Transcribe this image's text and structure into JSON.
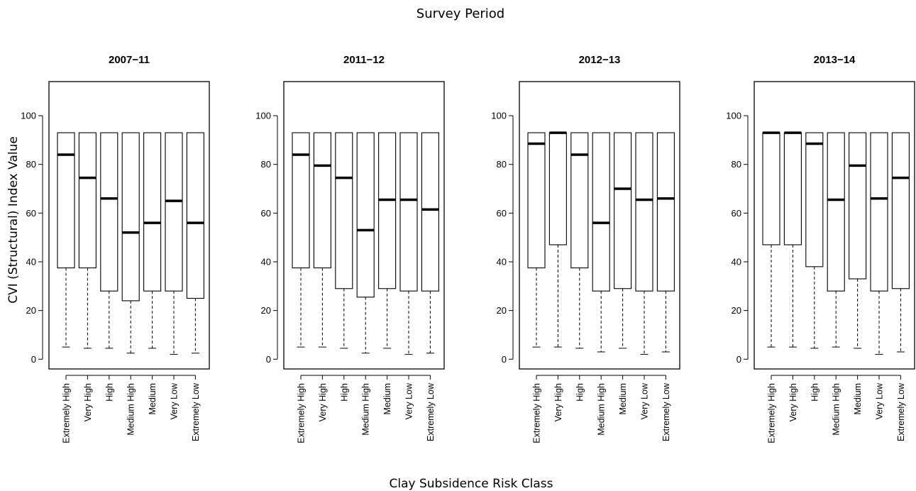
{
  "figure": {
    "title": "Survey Period",
    "xlabel": "Clay Subsidence Risk Class",
    "ylabel": "CVI (Structural) Index Value"
  },
  "chart_data": [
    {
      "type": "box",
      "title": "2007−11",
      "categories": [
        "Extremely High",
        "Very High",
        "High",
        "Medium High",
        "Medium",
        "Very Low",
        "Extremely Low"
      ],
      "ylim": [
        -4,
        114
      ],
      "yticks": [
        0,
        20,
        40,
        60,
        80,
        100
      ],
      "grid": false,
      "boxes": [
        {
          "whisker_low": 5,
          "q1": 37.5,
          "median": 84,
          "q3": 93,
          "whisker_high": 93
        },
        {
          "whisker_low": 4.5,
          "q1": 37.5,
          "median": 74.5,
          "q3": 93,
          "whisker_high": 93
        },
        {
          "whisker_low": 4.5,
          "q1": 28,
          "median": 66,
          "q3": 93,
          "whisker_high": 93
        },
        {
          "whisker_low": 2.5,
          "q1": 24,
          "median": 52,
          "q3": 93,
          "whisker_high": 93
        },
        {
          "whisker_low": 4.5,
          "q1": 28,
          "median": 56,
          "q3": 93,
          "whisker_high": 93
        },
        {
          "whisker_low": 2,
          "q1": 28,
          "median": 65,
          "q3": 93,
          "whisker_high": 93
        },
        {
          "whisker_low": 2.5,
          "q1": 25,
          "median": 56,
          "q3": 93,
          "whisker_high": 93
        }
      ]
    },
    {
      "type": "box",
      "title": "2011−12",
      "categories": [
        "Extremely High",
        "Very High",
        "High",
        "Medium High",
        "Medium",
        "Very Low",
        "Extremely Low"
      ],
      "ylim": [
        -4,
        114
      ],
      "yticks": [
        0,
        20,
        40,
        60,
        80,
        100
      ],
      "grid": false,
      "boxes": [
        {
          "whisker_low": 5,
          "q1": 37.5,
          "median": 84,
          "q3": 93,
          "whisker_high": 93
        },
        {
          "whisker_low": 5,
          "q1": 37.5,
          "median": 79.5,
          "q3": 93,
          "whisker_high": 93
        },
        {
          "whisker_low": 4.5,
          "q1": 29,
          "median": 74.5,
          "q3": 93,
          "whisker_high": 93
        },
        {
          "whisker_low": 2.5,
          "q1": 25.5,
          "median": 53,
          "q3": 93,
          "whisker_high": 93
        },
        {
          "whisker_low": 4.5,
          "q1": 29,
          "median": 65.5,
          "q3": 93,
          "whisker_high": 93
        },
        {
          "whisker_low": 2,
          "q1": 28,
          "median": 65.5,
          "q3": 93,
          "whisker_high": 93
        },
        {
          "whisker_low": 2.5,
          "q1": 28,
          "median": 61.5,
          "q3": 93,
          "whisker_high": 93
        }
      ]
    },
    {
      "type": "box",
      "title": "2012−13",
      "categories": [
        "Extremely High",
        "Very High",
        "High",
        "Medium High",
        "Medium",
        "Very Low",
        "Extremely Low"
      ],
      "ylim": [
        -4,
        114
      ],
      "yticks": [
        0,
        20,
        40,
        60,
        80,
        100
      ],
      "grid": false,
      "boxes": [
        {
          "whisker_low": 5,
          "q1": 37.5,
          "median": 88.5,
          "q3": 93,
          "whisker_high": 93
        },
        {
          "whisker_low": 5,
          "q1": 47,
          "median": 93,
          "q3": 93,
          "whisker_high": 93
        },
        {
          "whisker_low": 4.5,
          "q1": 37.5,
          "median": 84,
          "q3": 93,
          "whisker_high": 93
        },
        {
          "whisker_low": 3,
          "q1": 28,
          "median": 56,
          "q3": 93,
          "whisker_high": 93
        },
        {
          "whisker_low": 4.5,
          "q1": 29,
          "median": 70,
          "q3": 93,
          "whisker_high": 93
        },
        {
          "whisker_low": 2,
          "q1": 28,
          "median": 65.5,
          "q3": 93,
          "whisker_high": 93
        },
        {
          "whisker_low": 3,
          "q1": 28,
          "median": 66,
          "q3": 93,
          "whisker_high": 93
        }
      ]
    },
    {
      "type": "box",
      "title": "2013−14",
      "categories": [
        "Extremely High",
        "Very High",
        "High",
        "Medium High",
        "Medium",
        "Very Low",
        "Extremely Low"
      ],
      "ylim": [
        -4,
        114
      ],
      "yticks": [
        0,
        20,
        40,
        60,
        80,
        100
      ],
      "grid": false,
      "boxes": [
        {
          "whisker_low": 5,
          "q1": 47,
          "median": 93,
          "q3": 93,
          "whisker_high": 93
        },
        {
          "whisker_low": 5,
          "q1": 47,
          "median": 93,
          "q3": 93,
          "whisker_high": 93
        },
        {
          "whisker_low": 4.5,
          "q1": 38,
          "median": 88.5,
          "q3": 93,
          "whisker_high": 93
        },
        {
          "whisker_low": 5,
          "q1": 28,
          "median": 65.5,
          "q3": 93,
          "whisker_high": 93
        },
        {
          "whisker_low": 4.5,
          "q1": 33,
          "median": 79.5,
          "q3": 93,
          "whisker_high": 93
        },
        {
          "whisker_low": 2,
          "q1": 28,
          "median": 66,
          "q3": 93,
          "whisker_high": 93
        },
        {
          "whisker_low": 3,
          "q1": 29,
          "median": 74.5,
          "q3": 93,
          "whisker_high": 93
        }
      ]
    }
  ]
}
